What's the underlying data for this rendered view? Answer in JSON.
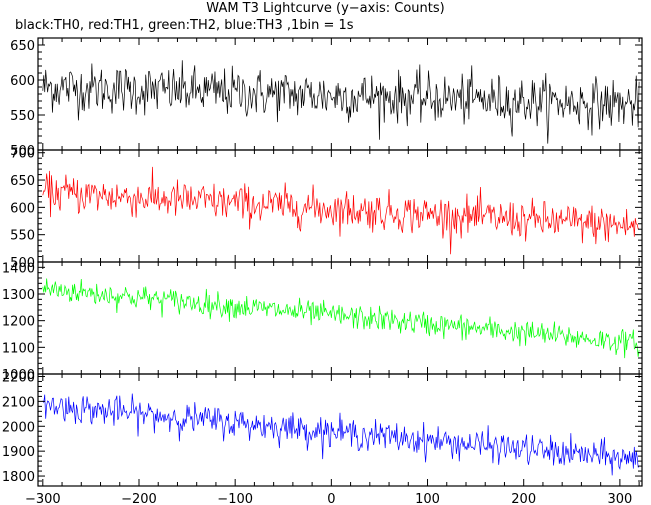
{
  "chart_data": {
    "type": "line",
    "title": "WAM T3 Lightcurve (y−axis: Counts)",
    "subtitle": "black:TH0, red:TH1, green:TH2, blue:TH3 ,1bin = 1s",
    "xlabel": "",
    "ylabel": "",
    "xlim": [
      -305,
      323
    ],
    "x_ticks": [
      "−300",
      "−200",
      "−100",
      "0",
      "100",
      "200",
      "300"
    ],
    "grid": false,
    "panels": [
      {
        "name": "TH0",
        "color": "#000000",
        "ylim": [
          500,
          660
        ],
        "y_ticks": [
          "500",
          "550",
          "600",
          "650"
        ],
        "trend": {
          "x": [
            -300,
            320
          ],
          "y": [
            590,
            565
          ]
        },
        "noise_amplitude": 32
      },
      {
        "name": "TH1",
        "color": "#ff0000",
        "ylim": [
          500,
          705
        ],
        "y_ticks": [
          "500",
          "550",
          "600",
          "650",
          "700"
        ],
        "trend": {
          "x": [
            -300,
            320
          ],
          "y": [
            628,
            565
          ]
        },
        "noise_amplitude": 32
      },
      {
        "name": "TH2",
        "color": "#00ff00",
        "ylim": [
          1000,
          1420
        ],
        "y_ticks": [
          "1000",
          "1100",
          "1200",
          "1300",
          "1400"
        ],
        "trend": {
          "x": [
            -300,
            320
          ],
          "y": [
            1320,
            1115
          ]
        },
        "noise_amplitude": 42
      },
      {
        "name": "TH3",
        "color": "#0000ff",
        "ylim": [
          1760,
          2210
        ],
        "y_ticks": [
          "1800",
          "1900",
          "2000",
          "2100",
          "2200"
        ],
        "trend": {
          "x": [
            -300,
            320
          ],
          "y": [
            2085,
            1865
          ]
        },
        "noise_amplitude": 55
      }
    ]
  }
}
